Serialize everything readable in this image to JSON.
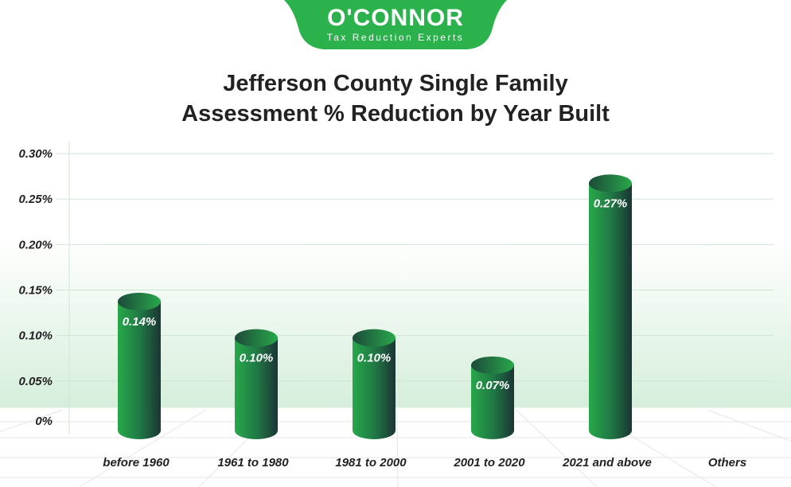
{
  "logo": {
    "brand": "O'CONNOR",
    "tagline": "Tax Reduction Experts",
    "color": "#2bb24c"
  },
  "title_lines": [
    "Jefferson County Single Family",
    "Assessment % Reduction by Year Built"
  ],
  "chart_data": {
    "type": "bar",
    "title": "Jefferson County Single Family Assessment % Reduction by Year Built",
    "categories": [
      "before 1960",
      "1961 to 1980",
      "1981 to 2000",
      "2001 to 2020",
      "2021 and above",
      "Others"
    ],
    "values": [
      0.14,
      0.1,
      0.1,
      0.07,
      0.27,
      null
    ],
    "data_labels": [
      "0.14%",
      "0.10%",
      "0.10%",
      "0.07%",
      "0.27%",
      ""
    ],
    "yticks": [
      "0%",
      "0.05%",
      "0.10%",
      "0.15%",
      "0.20%",
      "0.25%",
      "0.30%"
    ],
    "ylim": [
      0,
      0.3
    ],
    "unit": "%",
    "grid": true,
    "bar_style": "3d-cylinder",
    "bar_color": "#2bb24c",
    "bar_dark_color": "#1b3535"
  }
}
